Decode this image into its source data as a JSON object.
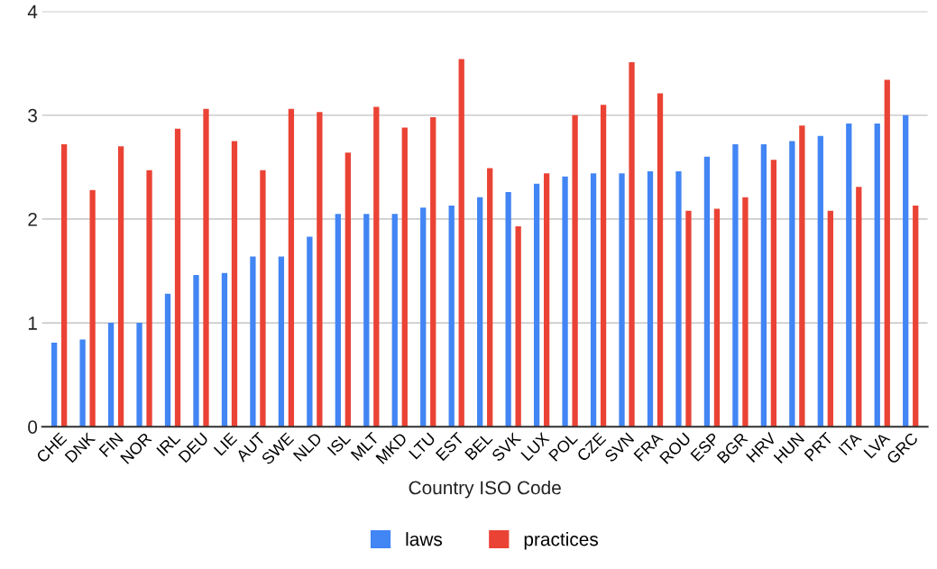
{
  "chart_data": {
    "type": "bar",
    "xlabel": "Country ISO Code",
    "categories": [
      "CHE",
      "DNK",
      "FIN",
      "NOR",
      "IRL",
      "DEU",
      "LIE",
      "AUT",
      "SWE",
      "NLD",
      "ISL",
      "MLT",
      "MKD",
      "LTU",
      "EST",
      "BEL",
      "SVK",
      "LUX",
      "POL",
      "CZE",
      "SVN",
      "FRA",
      "ROU",
      "ESP",
      "BGR",
      "HRV",
      "HUN",
      "PRT",
      "ITA",
      "LVA",
      "GRC"
    ],
    "series": [
      {
        "name": "laws",
        "color": "#4285f4",
        "values": [
          0.81,
          0.84,
          1.0,
          1.0,
          1.28,
          1.46,
          1.48,
          1.64,
          1.64,
          1.83,
          2.05,
          2.05,
          2.05,
          2.11,
          2.13,
          2.21,
          2.26,
          2.34,
          2.41,
          2.44,
          2.44,
          2.46,
          2.46,
          2.6,
          2.72,
          2.72,
          2.75,
          2.8,
          2.92,
          2.92,
          3.0
        ]
      },
      {
        "name": "practices",
        "color": "#ea4335",
        "values": [
          2.72,
          2.28,
          2.7,
          2.47,
          2.87,
          3.06,
          2.75,
          2.47,
          3.06,
          3.03,
          2.64,
          3.08,
          2.88,
          2.98,
          3.54,
          2.49,
          1.93,
          2.44,
          3.0,
          3.1,
          3.51,
          3.21,
          2.08,
          2.1,
          2.21,
          2.57,
          2.9,
          2.08,
          2.31,
          3.34,
          2.13
        ]
      }
    ],
    "ylim": [
      0,
      4
    ],
    "yticks": [
      0,
      1,
      2,
      3,
      4
    ],
    "grid": "y",
    "legend": "bottom"
  }
}
